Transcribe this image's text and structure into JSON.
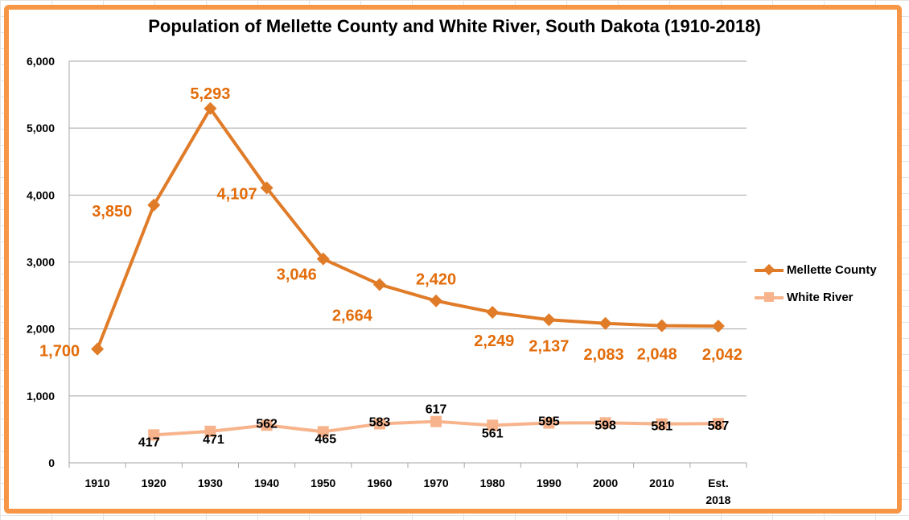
{
  "chart_data": {
    "type": "line",
    "title": "Population of Mellette County and White River, South Dakota (1910-2018)",
    "categories": [
      "1910",
      "1920",
      "1930",
      "1940",
      "1950",
      "1960",
      "1970",
      "1980",
      "1990",
      "2000",
      "2010",
      "Est. 2018"
    ],
    "ylim": [
      0,
      6000
    ],
    "yticks": [
      "0",
      "1,000",
      "2,000",
      "3,000",
      "4,000",
      "5,000",
      "6,000"
    ],
    "grid": true,
    "legend": "right",
    "series": [
      {
        "name": "Mellette County",
        "marker": "diamond",
        "color": "#e07b28",
        "label_color": "#e36c0a",
        "values": [
          1700,
          3850,
          5293,
          4107,
          3046,
          2664,
          2420,
          2249,
          2137,
          2083,
          2048,
          2042
        ],
        "labels": [
          "1,700",
          "3,850",
          "5,293",
          "4,107",
          "3,046",
          "2,664",
          "2,420",
          "2,249",
          "2,137",
          "2,083",
          "2,048",
          "2,042"
        ]
      },
      {
        "name": "White River",
        "marker": "square",
        "color": "#f7b48c",
        "label_color": "#000000",
        "values": [
          null,
          417,
          471,
          562,
          465,
          583,
          617,
          561,
          595,
          598,
          581,
          587
        ],
        "labels": [
          "",
          "417",
          "471",
          "562",
          "465",
          "583",
          "617",
          "561",
          "595",
          "598",
          "581",
          "587"
        ]
      }
    ]
  }
}
